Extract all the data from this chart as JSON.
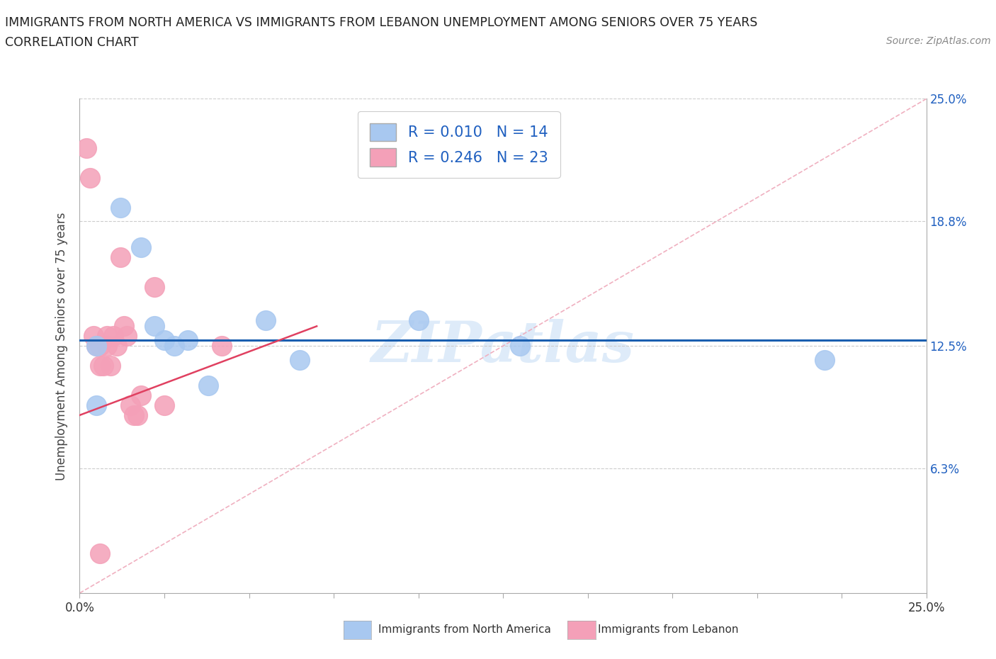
{
  "title_line1": "IMMIGRANTS FROM NORTH AMERICA VS IMMIGRANTS FROM LEBANON UNEMPLOYMENT AMONG SENIORS OVER 75 YEARS",
  "title_line2": "CORRELATION CHART",
  "source_text": "Source: ZipAtlas.com",
  "ylabel": "Unemployment Among Seniors over 75 years",
  "xlim": [
    0.0,
    0.25
  ],
  "ylim": [
    0.0,
    0.25
  ],
  "ytick_labels_right": [
    "25.0%",
    "18.8%",
    "12.5%",
    "6.3%"
  ],
  "ytick_positions_right": [
    0.25,
    0.188,
    0.125,
    0.063
  ],
  "hline_positions": [
    0.25,
    0.188,
    0.125,
    0.063
  ],
  "legend_r1": "R = 0.010",
  "legend_n1": "N = 14",
  "legend_r2": "R = 0.246",
  "legend_n2": "N = 23",
  "color_blue": "#a8c8f0",
  "color_pink": "#f4a0b8",
  "color_blue_text": "#2060c0",
  "color_axis": "#aaaaaa",
  "north_america_x": [
    0.005,
    0.012,
    0.018,
    0.022,
    0.025,
    0.028,
    0.032,
    0.055,
    0.065,
    0.1,
    0.13,
    0.22,
    0.005,
    0.038
  ],
  "north_america_y": [
    0.125,
    0.195,
    0.175,
    0.135,
    0.128,
    0.125,
    0.128,
    0.138,
    0.118,
    0.138,
    0.125,
    0.118,
    0.095,
    0.105
  ],
  "lebanon_x": [
    0.002,
    0.003,
    0.004,
    0.005,
    0.006,
    0.006,
    0.007,
    0.008,
    0.008,
    0.009,
    0.01,
    0.011,
    0.012,
    0.013,
    0.014,
    0.015,
    0.016,
    0.017,
    0.018,
    0.022,
    0.025,
    0.042,
    0.006
  ],
  "lebanon_y": [
    0.225,
    0.21,
    0.13,
    0.125,
    0.125,
    0.115,
    0.115,
    0.13,
    0.125,
    0.115,
    0.13,
    0.125,
    0.17,
    0.135,
    0.13,
    0.095,
    0.09,
    0.09,
    0.1,
    0.155,
    0.095,
    0.125,
    0.02
  ],
  "blue_trend_y_start": 0.128,
  "blue_trend_y_end": 0.128,
  "pink_trend_x_start": 0.0,
  "pink_trend_x_end": 0.07,
  "pink_trend_y_start": 0.09,
  "pink_trend_y_end": 0.135,
  "diag_color": "#e8b0b8",
  "watermark_color": "#c8dff5",
  "xtick_major": [
    0.0,
    0.025,
    0.05,
    0.075,
    0.1,
    0.125,
    0.15,
    0.175,
    0.2,
    0.225,
    0.25
  ]
}
